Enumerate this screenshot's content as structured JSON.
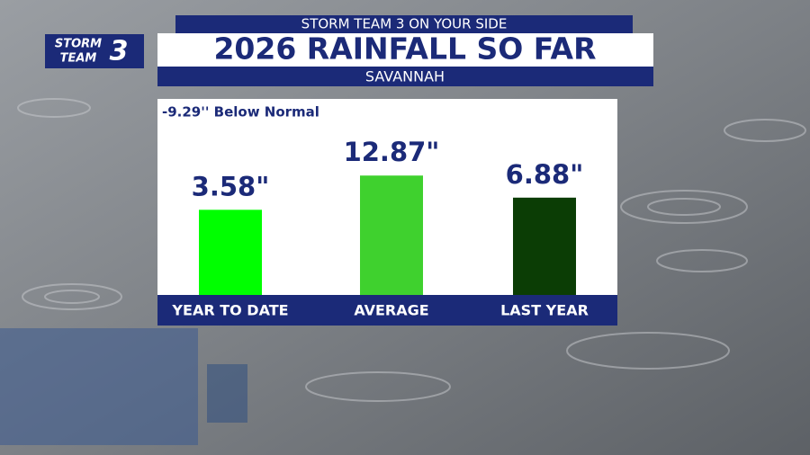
{
  "logo": {
    "line1": "STORM",
    "line2": "TEAM",
    "number": "3"
  },
  "header": "STORM TEAM 3 ON YOUR SIDE",
  "chart_data": {
    "type": "bar",
    "title": "2026 RAINFALL SO FAR",
    "subtitle": "SAVANNAH",
    "annotation": "-9.29'' Below Normal",
    "categories": [
      "YEAR TO DATE",
      "AVERAGE",
      "LAST YEAR"
    ],
    "values": [
      3.58,
      12.87,
      6.88
    ],
    "value_labels": [
      "3.58\"",
      "12.87\"",
      "6.88\""
    ],
    "colors": [
      "#00ff00",
      "#3fd12e",
      "#0b3d05"
    ]
  }
}
